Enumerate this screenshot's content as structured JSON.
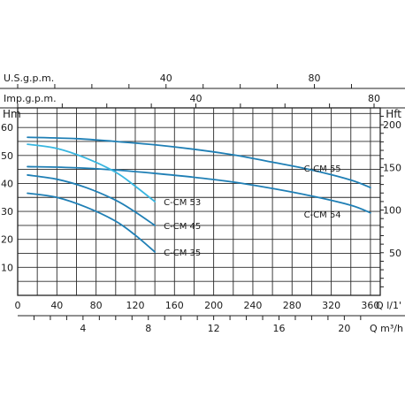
{
  "chart_data": {
    "type": "line",
    "title": "",
    "colors": {
      "dark": "#1f7fb5",
      "light": "#38b6e0",
      "axis": "#222222",
      "grid": "#2a2a2a"
    },
    "xlim": [
      0,
      370
    ],
    "ylim": [
      0,
      67
    ],
    "right_ylim": [
      0,
      219.8
    ],
    "grid": true,
    "x_axis": {
      "unit": "Q l/1'",
      "ticks": [
        0,
        40,
        80,
        120,
        160,
        200,
        240,
        280,
        320,
        360
      ]
    },
    "x2_axis": {
      "unit": "Q m³/h",
      "ticks": [
        4,
        8,
        12,
        16,
        20
      ]
    },
    "top1_axis": {
      "unit": "U.S.g.p.m.",
      "ticks": [
        40,
        80
      ]
    },
    "top2_axis": {
      "unit": "Imp.g.p.m.",
      "ticks": [
        40,
        80
      ]
    },
    "y_axis": {
      "unit": "Hm",
      "ticks": [
        10,
        20,
        30,
        40,
        50,
        60
      ]
    },
    "y2_axis": {
      "unit": "Hft",
      "ticks": [
        50,
        100,
        150,
        200
      ]
    },
    "series": [
      {
        "name": "C-CM 55",
        "color": "dark",
        "label": "C-CM 55",
        "x": [
          10,
          60,
          100,
          140,
          180,
          220,
          260,
          300,
          340,
          360
        ],
        "y": [
          56.5,
          56,
          55,
          53.8,
          52.2,
          50.2,
          47.6,
          44.8,
          41.2,
          38.5
        ]
      },
      {
        "name": "C-CM 54",
        "color": "dark",
        "label": "C-CM 54",
        "x": [
          10,
          60,
          100,
          140,
          180,
          220,
          260,
          300,
          340,
          360
        ],
        "y": [
          46,
          45.6,
          44.8,
          43.6,
          42.2,
          40.5,
          38.2,
          35.5,
          32.2,
          29.5
        ]
      },
      {
        "name": "C-CM 53",
        "color": "light",
        "label": "C-CM 53",
        "x": [
          10,
          40,
          70,
          100,
          120,
          140
        ],
        "y": [
          54,
          52.5,
          49,
          44,
          39,
          33.5
        ]
      },
      {
        "name": "C-CM 45",
        "color": "dark",
        "label": "C-CM 45",
        "x": [
          10,
          40,
          70,
          100,
          120,
          140
        ],
        "y": [
          43,
          41.5,
          38.5,
          34,
          29.8,
          25
        ]
      },
      {
        "name": "C-CM 35",
        "color": "dark",
        "label": "C-CM 35",
        "x": [
          10,
          40,
          70,
          100,
          120,
          140
        ],
        "y": [
          36.5,
          35,
          31.5,
          26.5,
          21.5,
          15.5
        ]
      }
    ]
  }
}
